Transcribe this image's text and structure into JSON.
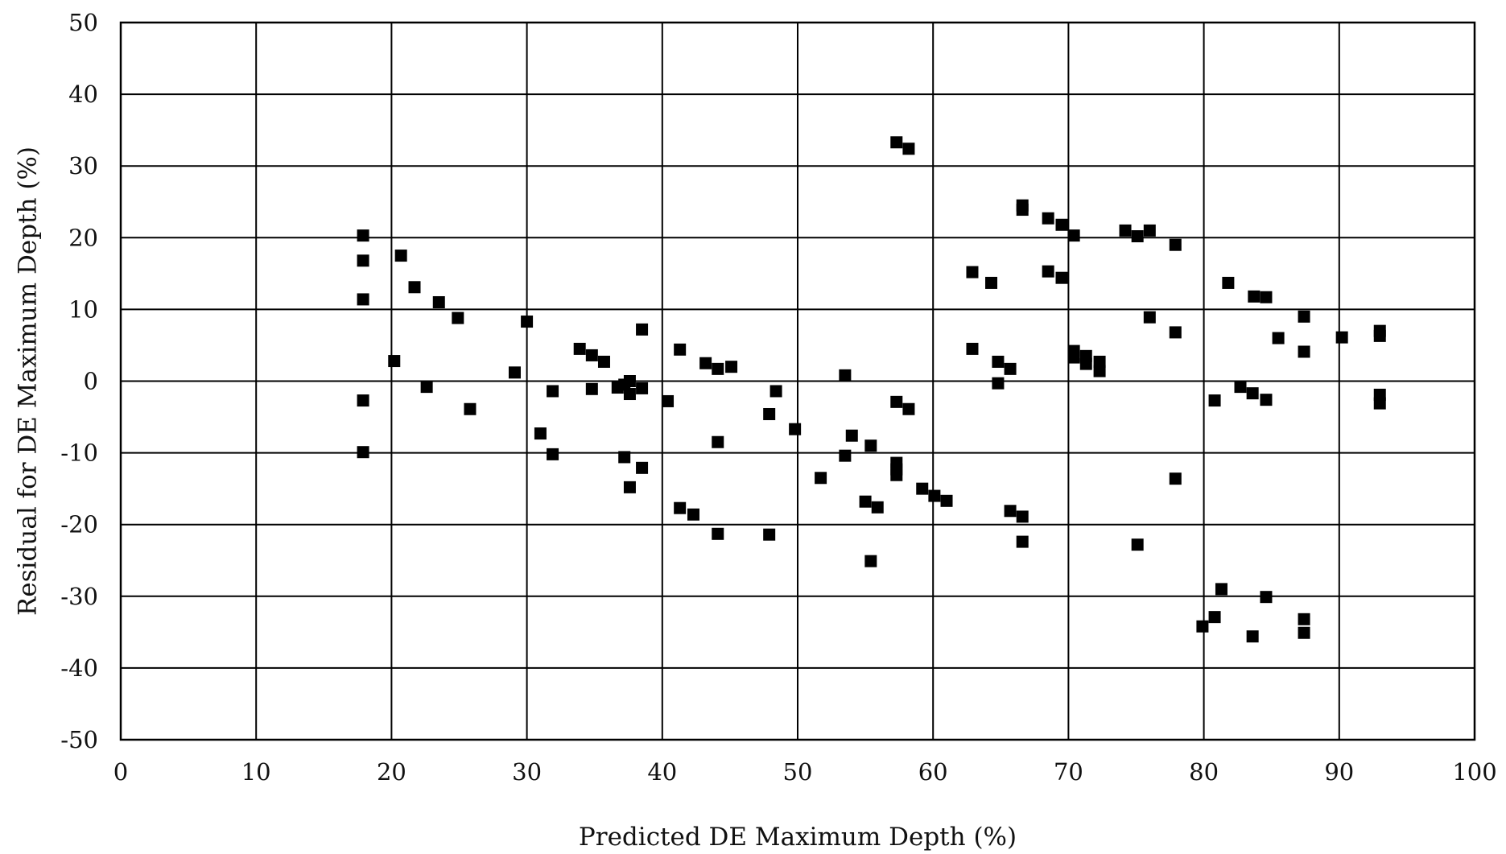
{
  "chart_data": {
    "type": "scatter",
    "title": "",
    "xlabel": "Predicted DE Maximum Depth (%)",
    "ylabel": "Residual  for DE Maximum Depth (%)",
    "xlim": [
      0,
      100
    ],
    "ylim": [
      -50,
      50
    ],
    "x_ticks": [
      "0",
      "10",
      "20",
      "30",
      "40",
      "50",
      "60",
      "70",
      "80",
      "90",
      "100"
    ],
    "y_ticks": [
      "50",
      "40",
      "30",
      "20",
      "10",
      "0",
      "-10",
      "-20",
      "-30",
      "-40",
      "-50"
    ],
    "grid": true,
    "legend": "none",
    "marker": "square",
    "marker_color": "#000000",
    "points": [
      [
        17.9,
        20.3
      ],
      [
        17.9,
        16.8
      ],
      [
        17.9,
        11.4
      ],
      [
        17.9,
        -2.7
      ],
      [
        17.9,
        -9.9
      ],
      [
        20.2,
        2.8
      ],
      [
        20.7,
        17.5
      ],
      [
        21.7,
        13.1
      ],
      [
        22.6,
        -0.8
      ],
      [
        23.5,
        11.0
      ],
      [
        24.9,
        8.8
      ],
      [
        25.8,
        -3.9
      ],
      [
        29.1,
        1.2
      ],
      [
        30.0,
        8.3
      ],
      [
        31.0,
        -7.3
      ],
      [
        31.9,
        -1.4
      ],
      [
        31.9,
        -10.2
      ],
      [
        33.9,
        4.5
      ],
      [
        34.8,
        3.6
      ],
      [
        34.8,
        -1.1
      ],
      [
        35.7,
        2.7
      ],
      [
        36.7,
        -0.9
      ],
      [
        37.2,
        -0.5
      ],
      [
        37.2,
        -10.6
      ],
      [
        37.6,
        0.0
      ],
      [
        37.6,
        -1.8
      ],
      [
        37.6,
        -14.8
      ],
      [
        38.5,
        -1.0
      ],
      [
        38.5,
        7.2
      ],
      [
        38.5,
        -12.1
      ],
      [
        40.4,
        -2.8
      ],
      [
        41.3,
        4.4
      ],
      [
        41.3,
        -17.7
      ],
      [
        42.3,
        -18.6
      ],
      [
        43.2,
        2.5
      ],
      [
        44.1,
        1.7
      ],
      [
        44.1,
        -8.5
      ],
      [
        44.1,
        -21.3
      ],
      [
        45.1,
        2.0
      ],
      [
        47.9,
        -4.6
      ],
      [
        47.9,
        -21.4
      ],
      [
        48.4,
        -1.4
      ],
      [
        49.8,
        -6.7
      ],
      [
        51.7,
        -13.5
      ],
      [
        53.5,
        0.8
      ],
      [
        53.5,
        -10.4
      ],
      [
        54.0,
        -7.6
      ],
      [
        55.0,
        -16.8
      ],
      [
        55.4,
        -9.0
      ],
      [
        55.4,
        -25.1
      ],
      [
        55.9,
        -17.6
      ],
      [
        57.3,
        -2.9
      ],
      [
        57.3,
        -11.4
      ],
      [
        57.3,
        -12.3
      ],
      [
        57.3,
        -13.1
      ],
      [
        57.3,
        33.3
      ],
      [
        58.2,
        32.4
      ],
      [
        58.2,
        -3.9
      ],
      [
        59.2,
        -15.0
      ],
      [
        60.1,
        -16.0
      ],
      [
        61.0,
        -16.7
      ],
      [
        62.9,
        15.2
      ],
      [
        62.9,
        4.5
      ],
      [
        64.3,
        13.7
      ],
      [
        64.8,
        2.7
      ],
      [
        64.8,
        -0.3
      ],
      [
        65.7,
        1.7
      ],
      [
        65.7,
        -18.1
      ],
      [
        66.6,
        24.5
      ],
      [
        66.6,
        23.9
      ],
      [
        66.6,
        -18.9
      ],
      [
        66.6,
        -22.4
      ],
      [
        68.5,
        22.7
      ],
      [
        68.5,
        15.3
      ],
      [
        69.5,
        21.8
      ],
      [
        69.5,
        14.4
      ],
      [
        70.4,
        20.3
      ],
      [
        70.4,
        4.2
      ],
      [
        70.4,
        3.3
      ],
      [
        71.3,
        3.5
      ],
      [
        71.3,
        2.4
      ],
      [
        72.3,
        2.7
      ],
      [
        72.3,
        1.4
      ],
      [
        74.2,
        21.0
      ],
      [
        75.1,
        20.2
      ],
      [
        75.1,
        -22.8
      ],
      [
        76.0,
        21.0
      ],
      [
        76.0,
        8.9
      ],
      [
        77.9,
        19.0
      ],
      [
        77.9,
        6.8
      ],
      [
        77.9,
        -13.6
      ],
      [
        79.9,
        -34.2
      ],
      [
        80.8,
        -2.7
      ],
      [
        80.8,
        -32.9
      ],
      [
        81.3,
        -29.0
      ],
      [
        81.8,
        13.7
      ],
      [
        82.7,
        -0.8
      ],
      [
        83.6,
        -1.7
      ],
      [
        83.6,
        -35.6
      ],
      [
        83.7,
        11.8
      ],
      [
        84.6,
        11.7
      ],
      [
        84.6,
        -2.6
      ],
      [
        84.6,
        -30.1
      ],
      [
        85.5,
        6.0
      ],
      [
        87.4,
        9.0
      ],
      [
        87.4,
        4.1
      ],
      [
        87.4,
        -33.2
      ],
      [
        87.4,
        -35.1
      ],
      [
        90.2,
        6.1
      ],
      [
        93.0,
        7.0
      ],
      [
        93.0,
        6.3
      ],
      [
        93.0,
        -1.9
      ],
      [
        93.0,
        -3.1
      ]
    ]
  }
}
